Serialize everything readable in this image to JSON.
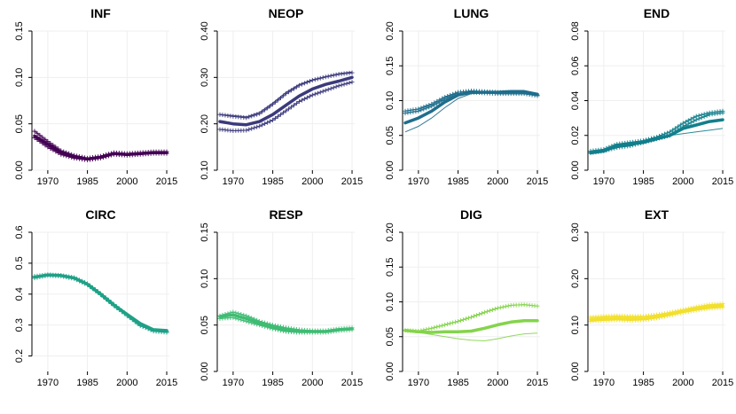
{
  "chart_data": [
    {
      "type": "line",
      "title": "INF",
      "color": "#440154",
      "xlim": [
        1964,
        2016
      ],
      "ylim": [
        0,
        0.15
      ],
      "xticks": [
        "1970",
        "1985",
        "2000",
        "2015"
      ],
      "yticks": [
        "0.00",
        "0.05",
        "0.10",
        "0.15"
      ],
      "series": [
        {
          "x": [
            1965,
            1970,
            1975,
            1980,
            1985,
            1990,
            1995,
            2000,
            2005,
            2010,
            2015
          ],
          "values": [
            0.037,
            0.028,
            0.019,
            0.014,
            0.012,
            0.014,
            0.018,
            0.017,
            0.018,
            0.019,
            0.019
          ],
          "style": "main"
        },
        {
          "x": [
            1965,
            1970,
            1975,
            1980,
            1985,
            1990,
            1995,
            2000,
            2005,
            2010,
            2015
          ],
          "values": [
            0.042,
            0.031,
            0.021,
            0.016,
            0.013,
            0.015,
            0.019,
            0.018,
            0.019,
            0.02,
            0.02
          ],
          "style": "cross"
        },
        {
          "x": [
            1965,
            1970,
            1975,
            1980,
            1985,
            1990,
            1995,
            2000,
            2005,
            2010,
            2015
          ],
          "values": [
            0.035,
            0.025,
            0.017,
            0.013,
            0.011,
            0.013,
            0.017,
            0.016,
            0.017,
            0.018,
            0.018
          ],
          "style": "cross"
        }
      ]
    },
    {
      "type": "line",
      "title": "NEOP",
      "color": "#3b3a7c",
      "xlim": [
        1964,
        2016
      ],
      "ylim": [
        0.1,
        0.4
      ],
      "xticks": [
        "1970",
        "1985",
        "2000",
        "2015"
      ],
      "yticks": [
        "0.10",
        "0.20",
        "0.30",
        "0.40"
      ],
      "series": [
        {
          "x": [
            1965,
            1970,
            1975,
            1980,
            1985,
            1990,
            1995,
            2000,
            2005,
            2010,
            2015
          ],
          "values": [
            0.205,
            0.2,
            0.198,
            0.205,
            0.22,
            0.24,
            0.26,
            0.275,
            0.285,
            0.292,
            0.3
          ],
          "style": "main"
        },
        {
          "x": [
            1965,
            1970,
            1975,
            1980,
            1985,
            1990,
            1995,
            2000,
            2005,
            2010,
            2015
          ],
          "values": [
            0.22,
            0.218,
            0.215,
            0.225,
            0.245,
            0.268,
            0.285,
            0.295,
            0.302,
            0.308,
            0.312
          ],
          "style": "thin"
        },
        {
          "x": [
            1965,
            1970,
            1975,
            1980,
            1985,
            1990,
            1995,
            2000,
            2005,
            2010,
            2015
          ],
          "values": [
            0.188,
            0.185,
            0.186,
            0.195,
            0.208,
            0.228,
            0.248,
            0.262,
            0.272,
            0.282,
            0.29
          ],
          "style": "cross"
        },
        {
          "x": [
            1965,
            1970,
            1975,
            1980,
            1985,
            1990,
            1995,
            2000,
            2005,
            2010,
            2015
          ],
          "values": [
            0.22,
            0.216,
            0.213,
            0.222,
            0.242,
            0.265,
            0.283,
            0.294,
            0.301,
            0.307,
            0.31
          ],
          "style": "cross"
        }
      ]
    },
    {
      "type": "line",
      "title": "LUNG",
      "color": "#1f6e8c",
      "xlim": [
        1964,
        2016
      ],
      "ylim": [
        0,
        0.2
      ],
      "xticks": [
        "1970",
        "1985",
        "2000",
        "2015"
      ],
      "yticks": [
        "0.00",
        "0.05",
        "0.10",
        "0.15",
        "0.20"
      ],
      "series": [
        {
          "x": [
            1965,
            1970,
            1975,
            1980,
            1985,
            1990,
            1995,
            2000,
            2005,
            2010,
            2015
          ],
          "values": [
            0.068,
            0.075,
            0.085,
            0.098,
            0.108,
            0.112,
            0.112,
            0.112,
            0.113,
            0.113,
            0.109
          ],
          "style": "main"
        },
        {
          "x": [
            1965,
            1970,
            1975,
            1980,
            1985,
            1990,
            1995,
            2000,
            2005,
            2010,
            2015
          ],
          "values": [
            0.055,
            0.063,
            0.075,
            0.09,
            0.103,
            0.11,
            0.111,
            0.11,
            0.11,
            0.11,
            0.107
          ],
          "style": "thin"
        },
        {
          "x": [
            1965,
            1970,
            1975,
            1980,
            1985,
            1990,
            1995,
            2000,
            2005,
            2010,
            2015
          ],
          "values": [
            0.085,
            0.088,
            0.095,
            0.105,
            0.112,
            0.114,
            0.113,
            0.112,
            0.112,
            0.111,
            0.108
          ],
          "style": "cross"
        },
        {
          "x": [
            1965,
            1970,
            1975,
            1980,
            1985,
            1990,
            1995,
            2000,
            2005,
            2010,
            2015
          ],
          "values": [
            0.082,
            0.085,
            0.092,
            0.102,
            0.11,
            0.112,
            0.111,
            0.11,
            0.11,
            0.11,
            0.107
          ],
          "style": "cross"
        }
      ]
    },
    {
      "type": "line",
      "title": "END",
      "color": "#127f8c",
      "xlim": [
        1964,
        2016
      ],
      "ylim": [
        0,
        0.08
      ],
      "xticks": [
        "1970",
        "1985",
        "2000",
        "2015"
      ],
      "yticks": [
        "0.00",
        "0.02",
        "0.04",
        "0.06",
        "0.08"
      ],
      "series": [
        {
          "x": [
            1965,
            1970,
            1975,
            1980,
            1985,
            1990,
            1995,
            2000,
            2005,
            2010,
            2015
          ],
          "values": [
            0.01,
            0.011,
            0.014,
            0.015,
            0.016,
            0.018,
            0.02,
            0.024,
            0.026,
            0.028,
            0.029
          ],
          "style": "main"
        },
        {
          "x": [
            1965,
            1970,
            1975,
            1980,
            1985,
            1990,
            1995,
            2000,
            2005,
            2010,
            2015
          ],
          "values": [
            0.01,
            0.011,
            0.013,
            0.014,
            0.016,
            0.018,
            0.02,
            0.021,
            0.022,
            0.023,
            0.024
          ],
          "style": "thin"
        },
        {
          "x": [
            1965,
            1970,
            1975,
            1980,
            1985,
            1990,
            1995,
            2000,
            2005,
            2010,
            2015
          ],
          "values": [
            0.011,
            0.012,
            0.015,
            0.016,
            0.017,
            0.019,
            0.022,
            0.027,
            0.031,
            0.033,
            0.034
          ],
          "style": "cross"
        },
        {
          "x": [
            1965,
            1970,
            1975,
            1980,
            1985,
            1990,
            1995,
            2000,
            2005,
            2010,
            2015
          ],
          "values": [
            0.01,
            0.011,
            0.013,
            0.014,
            0.016,
            0.018,
            0.02,
            0.025,
            0.029,
            0.032,
            0.033
          ],
          "style": "cross"
        }
      ]
    },
    {
      "type": "line",
      "title": "CIRC",
      "color": "#1fa187",
      "xlim": [
        1964,
        2016
      ],
      "ylim": [
        0.15,
        0.6
      ],
      "xticks": [
        "1970",
        "1985",
        "2000",
        "2015"
      ],
      "yticks": [
        "0.2",
        "0.3",
        "0.4",
        "0.5",
        "0.6"
      ],
      "series": [
        {
          "x": [
            1965,
            1970,
            1975,
            1980,
            1985,
            1990,
            1995,
            2000,
            2005,
            2010,
            2015
          ],
          "values": [
            0.455,
            0.462,
            0.46,
            0.452,
            0.432,
            0.4,
            0.365,
            0.335,
            0.305,
            0.285,
            0.282
          ],
          "style": "main"
        },
        {
          "x": [
            1965,
            1970,
            1975,
            1980,
            1985,
            1990,
            1995,
            2000,
            2005,
            2010,
            2015
          ],
          "values": [
            0.458,
            0.463,
            0.461,
            0.454,
            0.434,
            0.402,
            0.367,
            0.333,
            0.3,
            0.28,
            0.276
          ],
          "style": "cross"
        },
        {
          "x": [
            1965,
            1970,
            1975,
            1980,
            1985,
            1990,
            1995,
            2000,
            2005,
            2010,
            2015
          ],
          "values": [
            0.452,
            0.46,
            0.458,
            0.45,
            0.43,
            0.398,
            0.362,
            0.33,
            0.298,
            0.282,
            0.279
          ],
          "style": "cross"
        }
      ]
    },
    {
      "type": "line",
      "title": "RESP",
      "color": "#3fbc73",
      "xlim": [
        1964,
        2016
      ],
      "ylim": [
        0,
        0.15
      ],
      "xticks": [
        "1970",
        "1985",
        "2000",
        "2015"
      ],
      "yticks": [
        "0.00",
        "0.05",
        "0.10",
        "0.15"
      ],
      "series": [
        {
          "x": [
            1965,
            1970,
            1975,
            1980,
            1985,
            1990,
            1995,
            2000,
            2005,
            2010,
            2015
          ],
          "values": [
            0.059,
            0.061,
            0.057,
            0.052,
            0.048,
            0.045,
            0.043,
            0.043,
            0.043,
            0.045,
            0.046
          ],
          "style": "main"
        },
        {
          "x": [
            1965,
            1970,
            1975,
            1980,
            1985,
            1990,
            1995,
            2000,
            2005,
            2010,
            2015
          ],
          "values": [
            0.06,
            0.064,
            0.06,
            0.054,
            0.05,
            0.047,
            0.045,
            0.044,
            0.044,
            0.046,
            0.047
          ],
          "style": "cross"
        },
        {
          "x": [
            1965,
            1970,
            1975,
            1980,
            1985,
            1990,
            1995,
            2000,
            2005,
            2010,
            2015
          ],
          "values": [
            0.057,
            0.058,
            0.054,
            0.05,
            0.046,
            0.043,
            0.042,
            0.042,
            0.042,
            0.044,
            0.045
          ],
          "style": "cross"
        }
      ]
    },
    {
      "type": "line",
      "title": "DIG",
      "color": "#84d44b",
      "xlim": [
        1964,
        2016
      ],
      "ylim": [
        0,
        0.2
      ],
      "xticks": [
        "1970",
        "1985",
        "2000",
        "2015"
      ],
      "yticks": [
        "0.00",
        "0.05",
        "0.10",
        "0.15",
        "0.20"
      ],
      "series": [
        {
          "x": [
            1965,
            1970,
            1975,
            1980,
            1985,
            1990,
            1995,
            2000,
            2005,
            2010,
            2015
          ],
          "values": [
            0.059,
            0.057,
            0.056,
            0.057,
            0.057,
            0.058,
            0.062,
            0.067,
            0.071,
            0.073,
            0.073
          ],
          "style": "main"
        },
        {
          "x": [
            1965,
            1970,
            1975,
            1980,
            1985,
            1990,
            1995,
            2000,
            2005,
            2010,
            2015
          ],
          "values": [
            0.059,
            0.056,
            0.053,
            0.05,
            0.047,
            0.045,
            0.044,
            0.047,
            0.051,
            0.054,
            0.055
          ],
          "style": "thin"
        },
        {
          "x": [
            1965,
            1970,
            1975,
            1980,
            1985,
            1990,
            1995,
            2000,
            2005,
            2010,
            2015
          ],
          "values": [
            0.059,
            0.058,
            0.062,
            0.067,
            0.072,
            0.078,
            0.085,
            0.091,
            0.095,
            0.096,
            0.094
          ],
          "style": "cross"
        }
      ]
    },
    {
      "type": "line",
      "title": "EXT",
      "color": "#f2e02f",
      "xlim": [
        1964,
        2016
      ],
      "ylim": [
        0,
        0.3
      ],
      "xticks": [
        "1970",
        "1985",
        "2000",
        "2015"
      ],
      "yticks": [
        "0.00",
        "0.10",
        "0.20",
        "0.30"
      ],
      "series": [
        {
          "x": [
            1965,
            1970,
            1975,
            1980,
            1985,
            1990,
            1995,
            2000,
            2005,
            2010,
            2015
          ],
          "values": [
            0.112,
            0.114,
            0.115,
            0.114,
            0.114,
            0.118,
            0.124,
            0.13,
            0.135,
            0.14,
            0.142
          ],
          "style": "main"
        },
        {
          "x": [
            1965,
            1970,
            1975,
            1980,
            1985,
            1990,
            1995,
            2000,
            2005,
            2010,
            2015
          ],
          "values": [
            0.117,
            0.119,
            0.12,
            0.119,
            0.119,
            0.122,
            0.127,
            0.133,
            0.139,
            0.144,
            0.146
          ],
          "style": "cross"
        },
        {
          "x": [
            1965,
            1970,
            1975,
            1980,
            1985,
            1990,
            1995,
            2000,
            2005,
            2010,
            2015
          ],
          "values": [
            0.108,
            0.11,
            0.111,
            0.11,
            0.111,
            0.115,
            0.121,
            0.127,
            0.132,
            0.136,
            0.138
          ],
          "style": "cross"
        }
      ]
    }
  ]
}
